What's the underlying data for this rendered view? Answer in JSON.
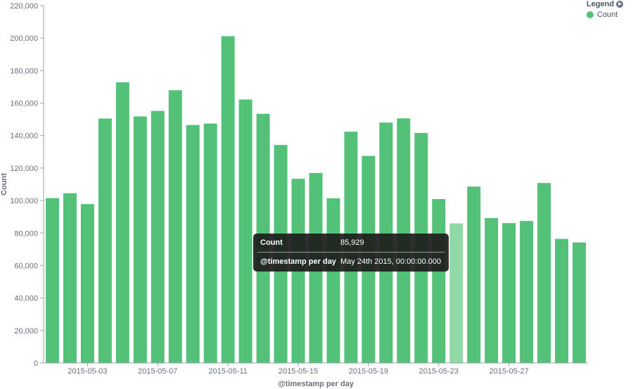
{
  "legend": {
    "title": "Legend",
    "toggle_icon": "arrow-right-circle-icon",
    "series_label": "Count",
    "series_color": "#54c178"
  },
  "tooltip": {
    "rows": [
      {
        "key": "Count",
        "value": "85,929"
      },
      {
        "key": "@timestamp per day",
        "value": "May 24th 2015, 00:00:00.000"
      }
    ]
  },
  "chart_data": {
    "type": "bar",
    "title": "",
    "xlabel": "@timestamp per day",
    "ylabel": "Count",
    "ylim": [
      0,
      220000
    ],
    "yticks": [
      0,
      20000,
      40000,
      60000,
      80000,
      100000,
      120000,
      140000,
      160000,
      180000,
      200000,
      220000
    ],
    "ytick_labels": [
      "0",
      "20,000",
      "40,000",
      "60,000",
      "80,000",
      "100,000",
      "120,000",
      "140,000",
      "160,000",
      "180,000",
      "200,000",
      "220,000"
    ],
    "xtick_labels": [
      "2015-05-03",
      "2015-05-07",
      "2015-05-11",
      "2015-05-15",
      "2015-05-19",
      "2015-05-23",
      "2015-05-27"
    ],
    "categories": [
      "2015-05-01",
      "2015-05-02",
      "2015-05-03",
      "2015-05-04",
      "2015-05-05",
      "2015-05-06",
      "2015-05-07",
      "2015-05-08",
      "2015-05-09",
      "2015-05-10",
      "2015-05-11",
      "2015-05-12",
      "2015-05-13",
      "2015-05-14",
      "2015-05-15",
      "2015-05-16",
      "2015-05-17",
      "2015-05-18",
      "2015-05-19",
      "2015-05-20",
      "2015-05-21",
      "2015-05-22",
      "2015-05-23",
      "2015-05-24",
      "2015-05-25",
      "2015-05-26",
      "2015-05-27",
      "2015-05-28",
      "2015-05-29",
      "2015-05-30",
      "2015-05-31"
    ],
    "series": [
      {
        "name": "Count",
        "color": "#54c178",
        "highlight_color": "#90d8a5",
        "highlight_index": 23,
        "values": [
          101500,
          104500,
          97800,
          150500,
          172800,
          151800,
          155200,
          167900,
          146500,
          147400,
          201200,
          162200,
          153400,
          134200,
          113400,
          117000,
          101400,
          142400,
          127500,
          148000,
          150600,
          141600,
          100900,
          85929,
          108600,
          89200,
          86100,
          87400,
          110800,
          76400,
          74200
        ]
      }
    ],
    "grid": false,
    "legend_position": "top-right"
  }
}
